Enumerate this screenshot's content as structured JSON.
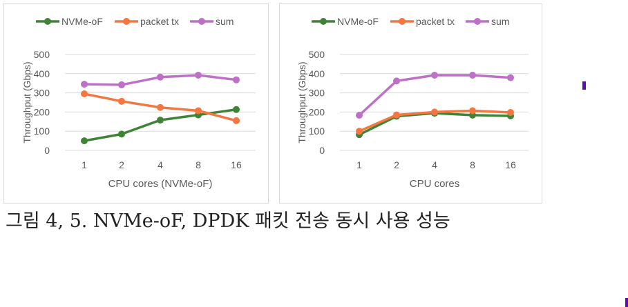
{
  "caption": "그림 4, 5. NVMe-oF, DPDK 패킷 전송 동시 사용 성능",
  "colors": {
    "nvme": "#3f8436",
    "packet": "#f47741",
    "sum": "#be6fc7",
    "grid": "#d9d9d9",
    "text": "#595959",
    "mark": "#5b0fb5"
  },
  "chart_data": [
    {
      "type": "line",
      "title": "",
      "xlabel": "CPU cores (NVMe-oF)",
      "ylabel": "Throughput (Gbps)",
      "ylim": [
        0,
        500
      ],
      "yticks": [
        0,
        100,
        200,
        300,
        400,
        500
      ],
      "grid": true,
      "legend_position": "top",
      "categories": [
        "1",
        "2",
        "4",
        "8",
        "16"
      ],
      "series": [
        {
          "name": "NVMe-oF",
          "values": [
            50,
            85,
            158,
            185,
            213
          ]
        },
        {
          "name": "packet tx",
          "values": [
            295,
            256,
            224,
            207,
            155
          ]
        },
        {
          "name": "sum",
          "values": [
            345,
            342,
            382,
            392,
            368
          ]
        }
      ]
    },
    {
      "type": "line",
      "title": "",
      "xlabel": "CPU cores",
      "ylabel": "Throughput (Gbps)",
      "ylim": [
        0,
        500
      ],
      "yticks": [
        0,
        100,
        200,
        300,
        400,
        500
      ],
      "grid": true,
      "legend_position": "top",
      "categories": [
        "1",
        "2",
        "4",
        "8",
        "16"
      ],
      "series": [
        {
          "name": "NVMe-oF",
          "values": [
            82,
            178,
            194,
            184,
            180
          ]
        },
        {
          "name": "packet tx",
          "values": [
            100,
            185,
            200,
            207,
            198
          ]
        },
        {
          "name": "sum",
          "values": [
            183,
            362,
            392,
            392,
            379
          ]
        }
      ]
    }
  ]
}
